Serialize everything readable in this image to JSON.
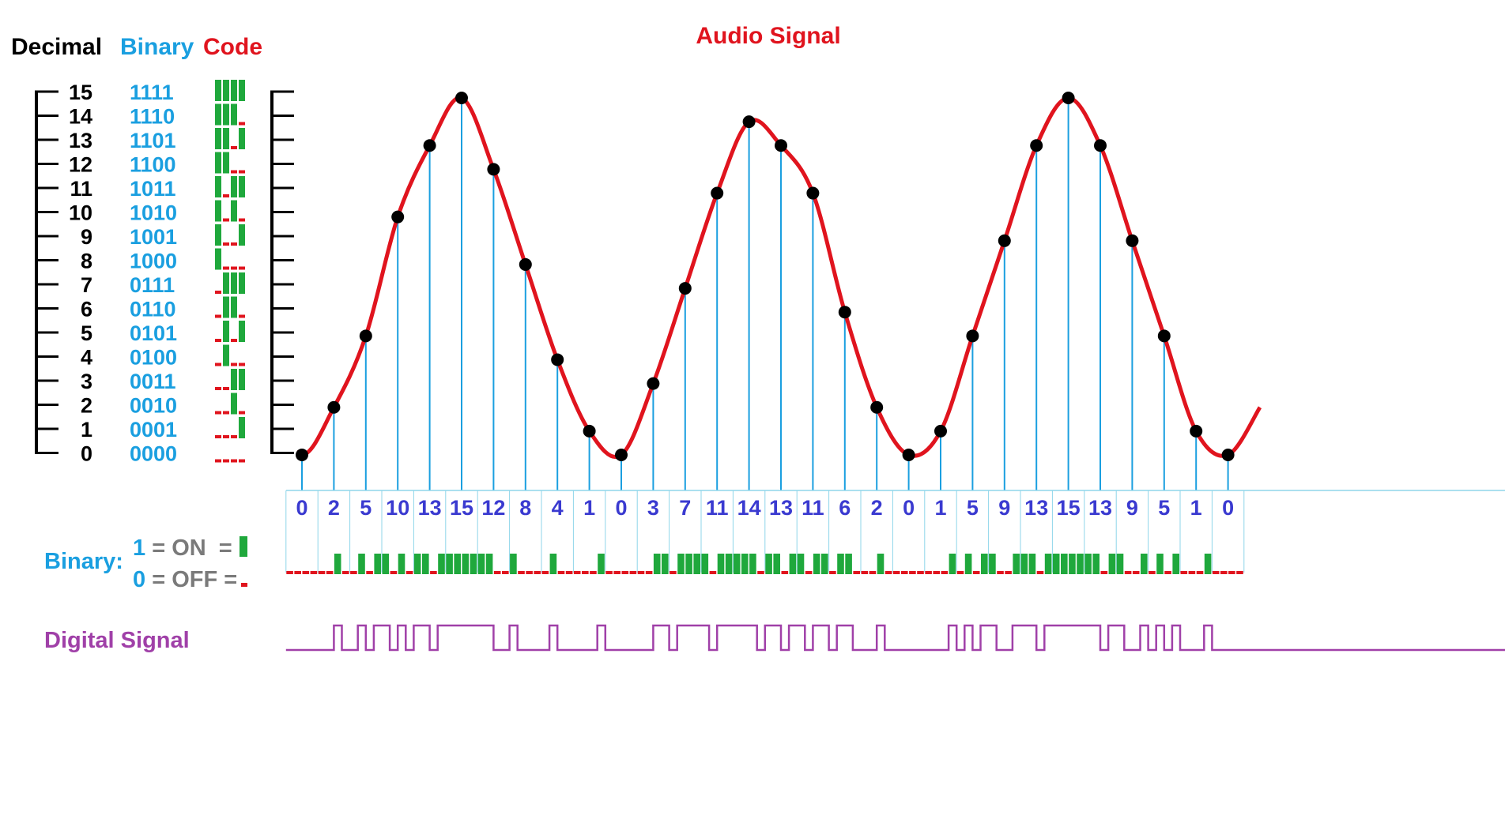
{
  "header": {
    "decimal": "Decimal",
    "binary": "Binary",
    "code": "Code",
    "audio_title": "Audio Signal"
  },
  "levels": [
    {
      "dec": "15",
      "bin": "1111"
    },
    {
      "dec": "14",
      "bin": "1110"
    },
    {
      "dec": "13",
      "bin": "1101"
    },
    {
      "dec": "12",
      "bin": "1100"
    },
    {
      "dec": "11",
      "bin": "1011"
    },
    {
      "dec": "10",
      "bin": "1010"
    },
    {
      "dec": "9",
      "bin": "1001"
    },
    {
      "dec": "8",
      "bin": "1000"
    },
    {
      "dec": "7",
      "bin": "0111"
    },
    {
      "dec": "6",
      "bin": "0110"
    },
    {
      "dec": "5",
      "bin": "0101"
    },
    {
      "dec": "4",
      "bin": "0100"
    },
    {
      "dec": "3",
      "bin": "0011"
    },
    {
      "dec": "2",
      "bin": "0010"
    },
    {
      "dec": "1",
      "bin": "0001"
    },
    {
      "dec": "0",
      "bin": "0000"
    }
  ],
  "samples": [
    0,
    2,
    5,
    10,
    13,
    15,
    12,
    8,
    4,
    1,
    0,
    3,
    7,
    11,
    14,
    13,
    11,
    6,
    2,
    0,
    1,
    5,
    9,
    13,
    15,
    13,
    9,
    5,
    1,
    0
  ],
  "legend": {
    "binary_label": "Binary:",
    "one": "1",
    "on": " = ON  =",
    "zero": "0",
    "off": " = OFF ="
  },
  "digital_label": "Digital Signal",
  "colors": {
    "black": "#000000",
    "blue": "#1a9fe0",
    "red": "#e0141e",
    "green": "#1fa83c",
    "sample_label": "#3a3ad0",
    "stem": "#1a9fe0",
    "grid": "#8fd6ea",
    "purple": "#a040a8",
    "gray": "#7a7a7a"
  }
}
